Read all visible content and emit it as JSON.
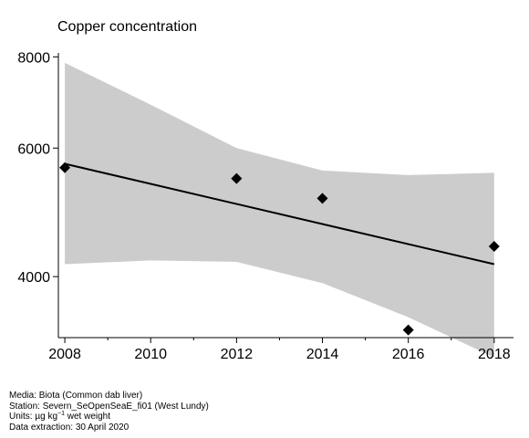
{
  "chart_data": {
    "type": "scatter",
    "title": "Copper concentration",
    "xlabel": "",
    "ylabel": "",
    "x_scale": "linear",
    "y_scale": "log",
    "xlim": [
      2007.85,
      2018.45
    ],
    "ylim": [
      3300,
      8100
    ],
    "x_ticks_major": [
      2008,
      2010,
      2012,
      2014,
      2016,
      2018
    ],
    "x_ticks_minor": [
      2009,
      2011,
      2013,
      2015,
      2017
    ],
    "y_ticks": [
      4000,
      6000,
      8000
    ],
    "grid": false,
    "series": [
      {
        "type": "scatter",
        "x": [
          2008,
          2012,
          2014,
          2016,
          2018
        ],
        "y": [
          5640,
          5450,
          5120,
          3380,
          4400
        ]
      }
    ],
    "trend_line": {
      "x": [
        2008,
        2018
      ],
      "y": [
        5710,
        4160
      ]
    },
    "confidence_band": {
      "x": [
        2008,
        2010,
        2012,
        2014,
        2016,
        2018
      ],
      "lower": [
        4160,
        4210,
        4190,
        3920,
        3520,
        3100
      ],
      "upper": [
        7850,
        6880,
        6000,
        5590,
        5510,
        5550
      ]
    },
    "colors": {
      "band": "#cccccc",
      "line": "#000000",
      "points": "#000000"
    }
  },
  "footer": {
    "media": "Media: Biota (Common dab liver)",
    "station": "Station: Severn_SeOpenSeaE_fi01 (West Lundy)",
    "units_prefix": "Units:  µg kg",
    "units_sup": "−1",
    "units_suffix": " wet weight",
    "extraction": "Data extraction: 30 April 2020"
  }
}
